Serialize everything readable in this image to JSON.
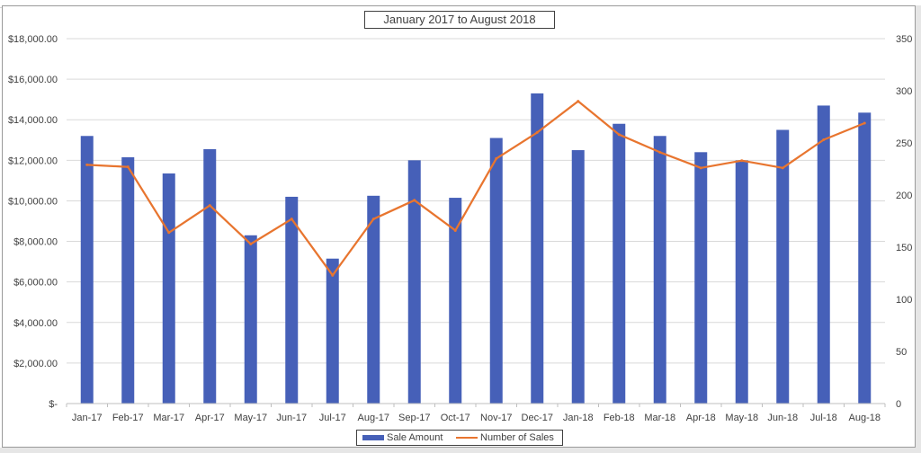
{
  "chart_data": {
    "type": "bar",
    "title": "January 2017 to August 2018",
    "categories": [
      "Jan-17",
      "Feb-17",
      "Mar-17",
      "Apr-17",
      "May-17",
      "Jun-17",
      "Jul-17",
      "Aug-17",
      "Sep-17",
      "Oct-17",
      "Nov-17",
      "Dec-17",
      "Jan-18",
      "Feb-18",
      "Mar-18",
      "Apr-18",
      "May-18",
      "Jun-18",
      "Jul-18",
      "Aug-18"
    ],
    "series": [
      {
        "name": "Sale Amount",
        "type": "bar",
        "axis": "left",
        "color": "#4660b8",
        "values": [
          13200,
          12150,
          11350,
          12550,
          8300,
          10200,
          7150,
          10250,
          12000,
          10150,
          13100,
          15300,
          12500,
          13800,
          13200,
          12400,
          12000,
          13500,
          14700,
          14350
        ]
      },
      {
        "name": "Number of Sales",
        "type": "line",
        "axis": "right",
        "color": "#e8752f",
        "values": [
          229,
          227,
          164,
          190,
          153,
          177,
          123,
          177,
          195,
          166,
          235,
          260,
          290,
          258,
          241,
          226,
          233,
          226,
          253,
          269
        ]
      }
    ],
    "ylim_left": [
      0,
      18000
    ],
    "ylim_right": [
      0,
      350
    ],
    "left_ticks": [
      {
        "value": 0,
        "label": "$-"
      },
      {
        "value": 2000,
        "label": "$2,000.00"
      },
      {
        "value": 4000,
        "label": "$4,000.00"
      },
      {
        "value": 6000,
        "label": "$6,000.00"
      },
      {
        "value": 8000,
        "label": "$8,000.00"
      },
      {
        "value": 10000,
        "label": "$10,000.00"
      },
      {
        "value": 12000,
        "label": "$12,000.00"
      },
      {
        "value": 14000,
        "label": "$14,000.00"
      },
      {
        "value": 16000,
        "label": "$16,000.00"
      },
      {
        "value": 18000,
        "label": "$18,000.00"
      }
    ],
    "right_ticks": [
      {
        "value": 0,
        "label": "0"
      },
      {
        "value": 50,
        "label": "50"
      },
      {
        "value": 100,
        "label": "100"
      },
      {
        "value": 150,
        "label": "150"
      },
      {
        "value": 200,
        "label": "200"
      },
      {
        "value": 250,
        "label": "250"
      },
      {
        "value": 300,
        "label": "300"
      },
      {
        "value": 350,
        "label": "350"
      }
    ],
    "grid": true,
    "legend_position": "bottom"
  }
}
